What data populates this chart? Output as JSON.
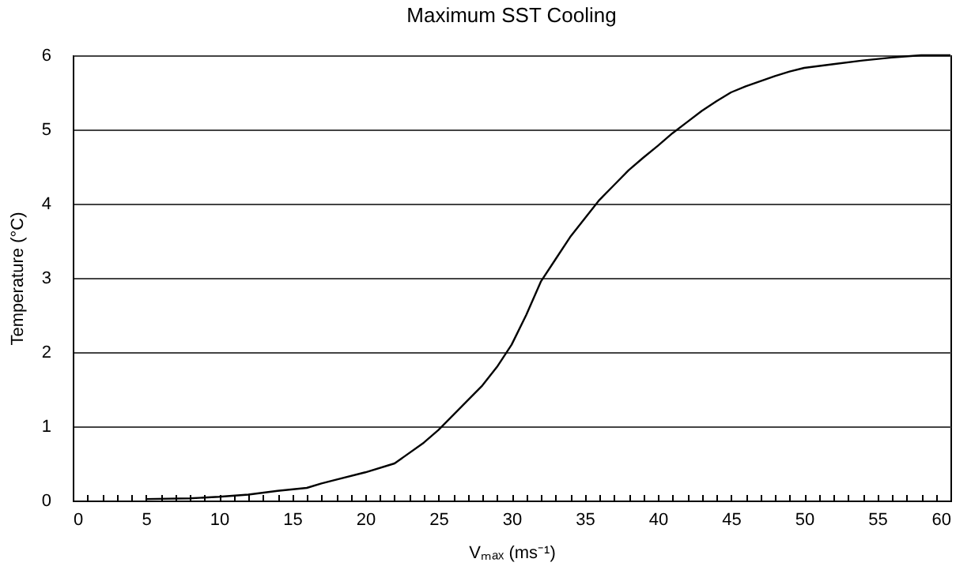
{
  "chart_data": {
    "type": "line",
    "title": "Maximum SST Cooling",
    "xlabel": "Vₘₐₓ (ms⁻¹)",
    "ylabel": "Temperature (°C)",
    "x": [
      5,
      8,
      10,
      12,
      14,
      16,
      17,
      18,
      20,
      22,
      24,
      25,
      26,
      28,
      29,
      30,
      31,
      32,
      33,
      34,
      35,
      36,
      37,
      38,
      39,
      40,
      41,
      42,
      43,
      44,
      45,
      46,
      47,
      48,
      49,
      50,
      52,
      54,
      56,
      58,
      60
    ],
    "series": [
      {
        "color": "#000000",
        "values": [
          0.02,
          0.03,
          0.05,
          0.08,
          0.13,
          0.17,
          0.23,
          0.28,
          0.38,
          0.5,
          0.78,
          0.95,
          1.15,
          1.55,
          1.8,
          2.1,
          2.5,
          2.95,
          3.25,
          3.55,
          3.8,
          4.05,
          4.25,
          4.45,
          4.62,
          4.78,
          4.95,
          5.1,
          5.25,
          5.38,
          5.5,
          5.58,
          5.65,
          5.72,
          5.78,
          5.83,
          5.88,
          5.93,
          5.97,
          6.0,
          6.0
        ]
      }
    ],
    "xlim": [
      0,
      60
    ],
    "xticks": [
      0,
      {
        "value": 1,
        "label": null
      },
      {
        "value": 2,
        "label": null
      },
      {
        "value": 3,
        "label": null
      },
      {
        "value": 4,
        "label": null
      },
      5,
      {
        "value": 6,
        "label": null
      },
      {
        "value": 7,
        "label": null
      },
      {
        "value": 8,
        "label": null
      },
      {
        "value": 9,
        "label": null
      },
      10,
      {
        "value": 11,
        "label": null
      },
      {
        "value": 12,
        "label": null
      },
      {
        "value": 13,
        "label": null
      },
      {
        "value": 14,
        "label": null
      },
      15,
      {
        "value": 16,
        "label": null
      },
      {
        "value": 17,
        "label": null
      },
      {
        "value": 18,
        "label": null
      },
      {
        "value": 19,
        "label": null
      },
      20,
      {
        "value": 21,
        "label": null
      },
      {
        "value": 22,
        "label": null
      },
      {
        "value": 23,
        "label": null
      },
      {
        "value": 24,
        "label": null
      },
      25,
      {
        "value": 26,
        "label": null
      },
      {
        "value": 27,
        "label": null
      },
      {
        "value": 28,
        "label": null
      },
      {
        "value": 29,
        "label": null
      },
      30,
      {
        "value": 31,
        "label": null
      },
      {
        "value": 32,
        "label": null
      },
      {
        "value": 33,
        "label": null
      },
      {
        "value": 34,
        "label": null
      },
      35,
      {
        "value": 36,
        "label": null
      },
      {
        "value": 37,
        "label": null
      },
      {
        "value": 38,
        "label": null
      },
      {
        "value": 39,
        "label": null
      },
      40,
      {
        "value": 41,
        "label": null
      },
      {
        "value": 42,
        "label": null
      },
      {
        "value": 43,
        "label": null
      },
      {
        "value": 44,
        "label": null
      },
      45,
      {
        "value": 46,
        "label": null
      },
      {
        "value": 47,
        "label": null
      },
      {
        "value": 48,
        "label": null
      },
      {
        "value": 49,
        "label": null
      },
      50,
      {
        "value": 51,
        "label": null
      },
      {
        "value": 52,
        "label": null
      },
      {
        "value": 53,
        "label": null
      },
      {
        "value": 54,
        "label": null
      },
      55,
      {
        "value": 56,
        "label": null
      },
      {
        "value": 57,
        "label": null
      },
      {
        "value": 58,
        "label": null
      },
      {
        "value": 59,
        "label": null
      },
      60
    ],
    "ylim": [
      0,
      6
    ],
    "yticks": [
      0,
      1,
      2,
      3,
      4,
      5,
      6
    ],
    "grid": "y",
    "marker": "none",
    "line_style": "solid",
    "legend": false
  }
}
